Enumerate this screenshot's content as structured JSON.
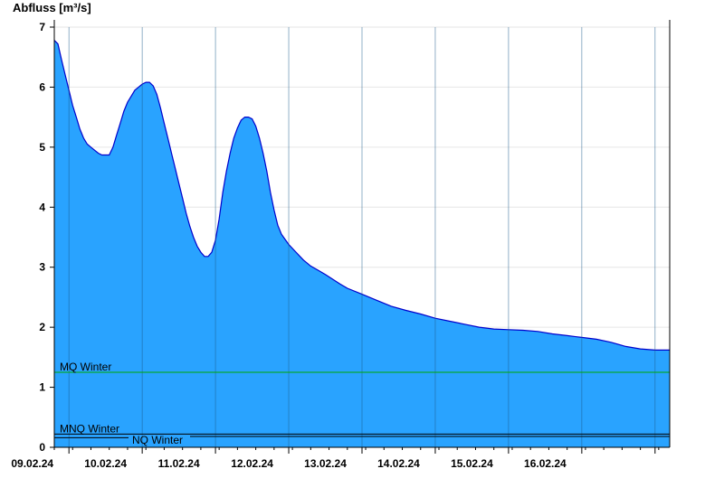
{
  "chart_data": {
    "type": "area",
    "ylabel": "Abfluss [m³/s]",
    "xlabel": "",
    "ylim": [
      0,
      7
    ],
    "yticks": [
      0,
      1,
      2,
      3,
      4,
      5,
      6,
      7
    ],
    "grid": true,
    "day_labels": [
      "09.02.24",
      "10.02.24",
      "11.02.24",
      "12.02.24",
      "13.02.24",
      "14.02.24",
      "15.02.24",
      "16.02.24"
    ],
    "series": [
      {
        "values_note": "t = days since start of axis (08.02.24 ~19:00), y = m³/s",
        "points": [
          [
            0.0,
            6.78
          ],
          [
            0.05,
            6.72
          ],
          [
            0.1,
            6.45
          ],
          [
            0.15,
            6.2
          ],
          [
            0.2,
            5.95
          ],
          [
            0.25,
            5.7
          ],
          [
            0.3,
            5.5
          ],
          [
            0.35,
            5.3
          ],
          [
            0.4,
            5.15
          ],
          [
            0.45,
            5.05
          ],
          [
            0.5,
            5.0
          ],
          [
            0.55,
            4.95
          ],
          [
            0.6,
            4.9
          ],
          [
            0.65,
            4.87
          ],
          [
            0.7,
            4.87
          ],
          [
            0.75,
            4.87
          ],
          [
            0.8,
            5.0
          ],
          [
            0.85,
            5.2
          ],
          [
            0.9,
            5.4
          ],
          [
            0.95,
            5.6
          ],
          [
            1.0,
            5.75
          ],
          [
            1.05,
            5.85
          ],
          [
            1.1,
            5.95
          ],
          [
            1.15,
            6.0
          ],
          [
            1.2,
            6.05
          ],
          [
            1.25,
            6.08
          ],
          [
            1.3,
            6.08
          ],
          [
            1.35,
            6.02
          ],
          [
            1.4,
            5.88
          ],
          [
            1.45,
            5.65
          ],
          [
            1.5,
            5.4
          ],
          [
            1.55,
            5.15
          ],
          [
            1.6,
            4.9
          ],
          [
            1.65,
            4.65
          ],
          [
            1.7,
            4.4
          ],
          [
            1.75,
            4.15
          ],
          [
            1.8,
            3.9
          ],
          [
            1.85,
            3.68
          ],
          [
            1.9,
            3.5
          ],
          [
            1.95,
            3.35
          ],
          [
            2.0,
            3.25
          ],
          [
            2.05,
            3.18
          ],
          [
            2.1,
            3.18
          ],
          [
            2.15,
            3.25
          ],
          [
            2.2,
            3.45
          ],
          [
            2.25,
            3.8
          ],
          [
            2.3,
            4.25
          ],
          [
            2.35,
            4.6
          ],
          [
            2.4,
            4.9
          ],
          [
            2.45,
            5.15
          ],
          [
            2.5,
            5.32
          ],
          [
            2.55,
            5.45
          ],
          [
            2.6,
            5.5
          ],
          [
            2.65,
            5.5
          ],
          [
            2.7,
            5.47
          ],
          [
            2.75,
            5.35
          ],
          [
            2.8,
            5.15
          ],
          [
            2.85,
            4.9
          ],
          [
            2.9,
            4.6
          ],
          [
            2.95,
            4.25
          ],
          [
            3.0,
            3.95
          ],
          [
            3.05,
            3.7
          ],
          [
            3.1,
            3.55
          ],
          [
            3.2,
            3.38
          ],
          [
            3.3,
            3.25
          ],
          [
            3.4,
            3.12
          ],
          [
            3.5,
            3.02
          ],
          [
            3.6,
            2.95
          ],
          [
            3.7,
            2.88
          ],
          [
            3.8,
            2.8
          ],
          [
            3.9,
            2.72
          ],
          [
            4.0,
            2.65
          ],
          [
            4.2,
            2.55
          ],
          [
            4.4,
            2.45
          ],
          [
            4.6,
            2.35
          ],
          [
            4.8,
            2.28
          ],
          [
            5.0,
            2.22
          ],
          [
            5.2,
            2.15
          ],
          [
            5.4,
            2.1
          ],
          [
            5.6,
            2.05
          ],
          [
            5.8,
            2.0
          ],
          [
            6.0,
            1.97
          ],
          [
            6.2,
            1.96
          ],
          [
            6.4,
            1.95
          ],
          [
            6.6,
            1.93
          ],
          [
            6.8,
            1.89
          ],
          [
            7.0,
            1.86
          ],
          [
            7.2,
            1.83
          ],
          [
            7.4,
            1.8
          ],
          [
            7.6,
            1.75
          ],
          [
            7.8,
            1.68
          ],
          [
            8.0,
            1.64
          ],
          [
            8.2,
            1.62
          ],
          [
            8.4,
            1.62
          ]
        ],
        "fill": "#29a3ff",
        "stroke": "#0000cc"
      }
    ],
    "t_max": 8.4,
    "day_boundaries_t": [
      0.2,
      1.2,
      2.2,
      3.2,
      4.2,
      5.2,
      6.2,
      7.2,
      8.2
    ],
    "reference_lines": [
      {
        "label": "MQ Winter",
        "value": 1.25,
        "color": "#00aa00"
      },
      {
        "label": "MNQ Winter",
        "value": 0.22,
        "color": "#000000"
      },
      {
        "label": "NQ Winter",
        "value": 0.18,
        "color": "#000000"
      }
    ]
  }
}
